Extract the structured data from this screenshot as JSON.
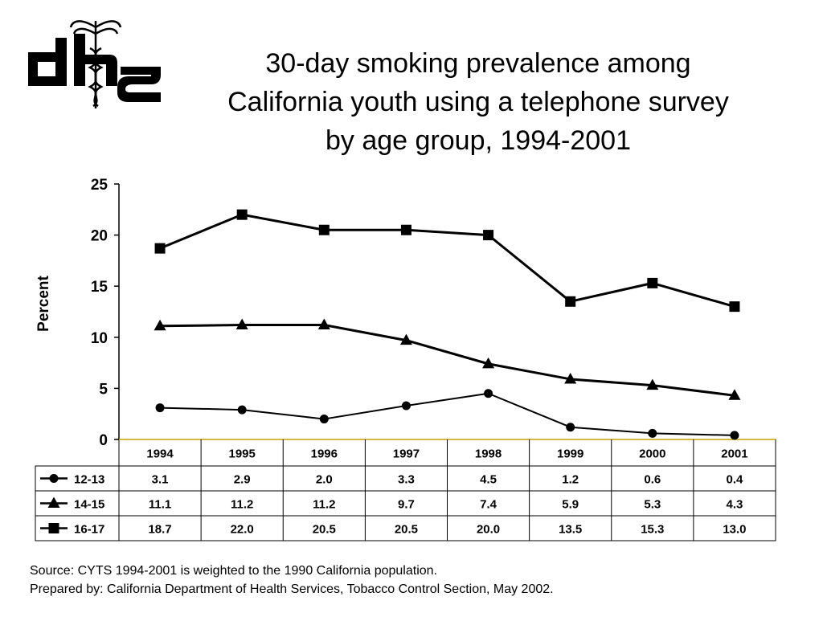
{
  "logo": {
    "text": "dhs"
  },
  "title": {
    "line1": "30-day smoking prevalence among",
    "line2": "California youth using a telephone survey",
    "line3": "by age group, 1994-2001"
  },
  "chart_data": {
    "type": "line",
    "title": "30-day smoking prevalence among California youth using a telephone survey by age group, 1994-2001",
    "ylabel": "Percent",
    "xlabel": "",
    "ylim": [
      0,
      25
    ],
    "yticks": [
      0,
      5,
      10,
      15,
      20,
      25
    ],
    "categories": [
      "1994",
      "1995",
      "1996",
      "1997",
      "1998",
      "1999",
      "2000",
      "2001"
    ],
    "grid": false,
    "legend": "data table below chart",
    "series": [
      {
        "name": "12-13",
        "marker": "circle",
        "values": [
          3.1,
          2.9,
          2.0,
          3.3,
          4.5,
          1.2,
          0.6,
          0.4
        ],
        "labels": [
          "3.1",
          "2.9",
          "2.0",
          "3.3",
          "4.5",
          "1.2",
          "0.6",
          "0.4"
        ]
      },
      {
        "name": "14-15",
        "marker": "triangle",
        "values": [
          11.1,
          11.2,
          11.2,
          9.7,
          7.4,
          5.9,
          5.3,
          4.3
        ],
        "labels": [
          "11.1",
          "11.2",
          "11.2",
          "9.7",
          "7.4",
          "5.9",
          "5.3",
          "4.3"
        ]
      },
      {
        "name": "16-17",
        "marker": "square",
        "values": [
          18.7,
          22.0,
          20.5,
          20.5,
          20.0,
          13.5,
          15.3,
          13.0
        ],
        "labels": [
          "18.7",
          "22.0",
          "20.5",
          "20.5",
          "20.0",
          "13.5",
          "15.3",
          "13.0"
        ]
      }
    ]
  },
  "footer": {
    "source": "Source:  CYTS 1994-2001 is weighted to the 1990 California population.",
    "prepared": "Prepared by: California Department of Health Services, Tobacco Control Section, May 2002."
  }
}
